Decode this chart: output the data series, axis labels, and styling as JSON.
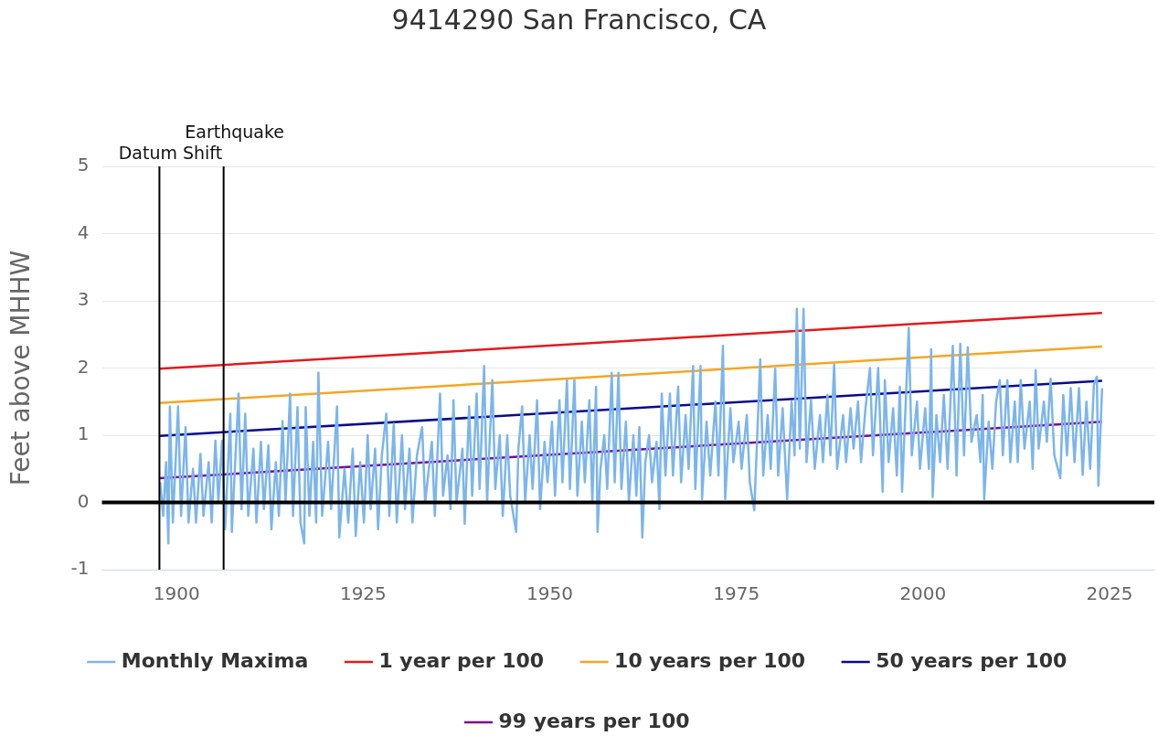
{
  "chart_data": {
    "type": "line",
    "title": "9414290 San Francisco, CA",
    "ylabel": "Feet above MHHW",
    "xlim": [
      1890,
      2031
    ],
    "xticks": [
      1900,
      1925,
      1950,
      1975,
      2000,
      2025
    ],
    "ylim": [
      -1,
      5
    ],
    "yticks": [
      -1,
      0,
      1,
      2,
      3,
      4,
      5
    ],
    "grid": "y",
    "legend": "bottom",
    "marker": "none",
    "line_style": "solid",
    "ref_lines": [
      {
        "axis": "x",
        "value": 1897.7,
        "label": "Datum Shift",
        "color": "#000000"
      },
      {
        "axis": "x",
        "value": 1906.3,
        "label": "Earthquake",
        "color": "#000000"
      },
      {
        "axis": "y",
        "value": 0,
        "color": "#000000"
      }
    ],
    "series": [
      {
        "name": "Monthly Maxima",
        "color": "#7cb5ec",
        "x": [
          1897.8,
          1898.2,
          1898.6,
          1898.9,
          1899.1,
          1899.5,
          1900.2,
          1900.6,
          1901.2,
          1901.6,
          1902.2,
          1902.6,
          1903.2,
          1903.6,
          1904.3,
          1904.7,
          1905.2,
          1905.6,
          1906.1,
          1906.5,
          1907.2,
          1907.4,
          1908.3,
          1908.7,
          1909.2,
          1909.6,
          1910.3,
          1910.7,
          1911.3,
          1911.7,
          1912.3,
          1912.7,
          1913.3,
          1913.7,
          1914.2,
          1914.6,
          1915.2,
          1915.6,
          1916.2,
          1916.6,
          1917.1,
          1917.3,
          1917.8,
          1918.3,
          1918.7,
          1919.0,
          1919.5,
          1920.3,
          1920.7,
          1921.5,
          1921.8,
          1922.5,
          1923.0,
          1923.6,
          1924.0,
          1924.6,
          1925.1,
          1925.6,
          1926.0,
          1926.6,
          1927.0,
          1927.5,
          1928.1,
          1928.5,
          1929.1,
          1929.5,
          1930.2,
          1930.6,
          1931.2,
          1931.6,
          1932.2,
          1932.9,
          1933.3,
          1934.2,
          1934.6,
          1935.3,
          1935.7,
          1936.3,
          1936.7,
          1937.1,
          1937.5,
          1938.3,
          1938.6,
          1939.2,
          1939.6,
          1940.2,
          1940.6,
          1941.2,
          1941.6,
          1942.3,
          1942.7,
          1943.3,
          1943.7,
          1944.3,
          1944.7,
          1945.5,
          1945.8,
          1946.3,
          1946.7,
          1947.3,
          1947.7,
          1948.3,
          1948.7,
          1949.3,
          1949.7,
          1950.3,
          1950.7,
          1951.3,
          1951.7,
          1952.3,
          1952.7,
          1953.3,
          1953.7,
          1954.3,
          1954.7,
          1955.3,
          1955.7,
          1956.2,
          1956.4,
          1956.8,
          1957.3,
          1957.7,
          1958.3,
          1958.7,
          1959.2,
          1959.6,
          1960.2,
          1960.6,
          1961.2,
          1961.6,
          1962.0,
          1962.4,
          1962.8,
          1963.3,
          1963.7,
          1964.3,
          1964.7,
          1965.0,
          1965.5,
          1966.1,
          1966.5,
          1967.2,
          1967.6,
          1968.2,
          1968.6,
          1969.2,
          1969.5,
          1970.2,
          1970.4,
          1971.0,
          1971.5,
          1972.2,
          1972.6,
          1973.2,
          1973.5,
          1974.2,
          1974.6,
          1975.3,
          1975.7,
          1976.4,
          1976.8,
          1977.4,
          1977.8,
          1978.2,
          1978.6,
          1979.2,
          1979.6,
          1980.2,
          1980.6,
          1981.2,
          1981.8,
          1982.4,
          1982.8,
          1983.1,
          1983.5,
          1984.0,
          1984.4,
          1985.0,
          1985.5,
          1986.2,
          1986.6,
          1987.2,
          1987.6,
          1988.1,
          1988.5,
          1989.3,
          1989.7,
          1990.3,
          1990.7,
          1991.3,
          1991.7,
          1992.3,
          1992.9,
          1993.3,
          1994.0,
          1994.6,
          1994.9,
          1995.4,
          1996.0,
          1996.5,
          1996.9,
          1997.2,
          1998.1,
          1998.5,
          1999.2,
          1999.6,
          2000.3,
          2000.8,
          2001.1,
          2001.3,
          2001.8,
          2002.3,
          2002.8,
          2003.3,
          2004.0,
          2004.5,
          2005.0,
          2005.5,
          2006.0,
          2006.5,
          2007.2,
          2007.7,
          2008.0,
          2008.2,
          2008.8,
          2009.3,
          2009.8,
          2010.3,
          2010.7,
          2011.3,
          2011.7,
          2012.3,
          2012.7,
          2013.1,
          2013.6,
          2014.3,
          2014.7,
          2015.1,
          2015.5,
          2016.2,
          2016.6,
          2017.1,
          2017.6,
          2018.4,
          2018.8,
          2019.3,
          2019.8,
          2020.3,
          2020.9,
          2021.4,
          2021.9,
          2022.4,
          2022.9,
          2023.3,
          2023.5,
          2024.0
        ],
        "values": [
          0.3,
          -0.2,
          0.6,
          -0.61,
          1.43,
          -0.3,
          1.43,
          -0.2,
          1.12,
          -0.3,
          0.5,
          -0.3,
          0.72,
          -0.2,
          0.6,
          -0.3,
          0.92,
          0.0,
          0.92,
          -0.4,
          1.32,
          -0.44,
          1.62,
          -0.1,
          1.32,
          -0.2,
          0.8,
          -0.3,
          0.9,
          -0.1,
          0.85,
          -0.4,
          0.6,
          -0.2,
          1.21,
          0.0,
          1.62,
          -0.2,
          1.42,
          -0.3,
          -0.61,
          1.42,
          -0.2,
          0.9,
          -0.3,
          1.93,
          -0.2,
          0.9,
          -0.1,
          1.43,
          -0.52,
          0.5,
          -0.3,
          0.8,
          -0.5,
          0.6,
          -0.3,
          1.0,
          -0.1,
          0.8,
          -0.4,
          0.7,
          1.32,
          -0.2,
          1.17,
          -0.3,
          1.0,
          -0.1,
          0.8,
          -0.3,
          0.7,
          1.12,
          0.0,
          0.9,
          -0.2,
          1.62,
          0.1,
          0.7,
          -0.1,
          1.52,
          0.0,
          0.8,
          -0.32,
          1.43,
          0.1,
          1.62,
          0.2,
          2.03,
          0.0,
          1.82,
          0.2,
          1.0,
          -0.2,
          1.0,
          0.1,
          -0.44,
          0.8,
          1.43,
          0.0,
          1.0,
          0.2,
          1.52,
          -0.1,
          0.9,
          0.3,
          1.2,
          0.1,
          1.52,
          0.3,
          1.82,
          0.2,
          1.82,
          0.1,
          1.2,
          0.3,
          1.52,
          0.0,
          1.72,
          -0.44,
          0.5,
          1.0,
          0.2,
          1.93,
          0.3,
          1.93,
          0.2,
          1.2,
          0.0,
          1.0,
          0.1,
          1.12,
          -0.52,
          0.6,
          1.0,
          0.3,
          0.9,
          -0.1,
          1.62,
          0.4,
          1.62,
          0.4,
          1.72,
          0.3,
          1.3,
          0.5,
          2.03,
          0.2,
          2.03,
          0.05,
          1.2,
          0.4,
          1.5,
          0.4,
          2.33,
          0.05,
          1.4,
          0.6,
          1.2,
          0.5,
          1.3,
          0.3,
          -0.12,
          1.0,
          2.13,
          0.4,
          1.3,
          0.5,
          1.99,
          0.4,
          1.4,
          0.05,
          1.5,
          0.7,
          2.88,
          0.8,
          2.88,
          0.6,
          1.52,
          0.5,
          1.3,
          0.6,
          1.6,
          0.7,
          2.05,
          0.5,
          1.3,
          0.6,
          1.4,
          0.8,
          1.5,
          0.6,
          1.4,
          2.0,
          0.7,
          2.0,
          0.16,
          1.82,
          0.6,
          1.4,
          0.4,
          1.72,
          0.16,
          2.6,
          0.7,
          1.5,
          0.5,
          1.4,
          0.5,
          2.28,
          0.08,
          1.3,
          0.6,
          1.6,
          0.5,
          2.33,
          0.4,
          2.36,
          0.7,
          2.31,
          0.9,
          1.3,
          0.6,
          1.6,
          0.05,
          1.2,
          0.5,
          1.5,
          1.82,
          0.7,
          1.82,
          0.6,
          1.5,
          0.6,
          1.82,
          0.8,
          1.5,
          0.5,
          1.97,
          0.8,
          1.5,
          0.9,
          1.84,
          0.7,
          0.36,
          1.6,
          0.7,
          1.7,
          0.6,
          1.7,
          0.41,
          1.5,
          0.5,
          1.75,
          1.87,
          0.25,
          1.7
        ]
      },
      {
        "name": "1 year per 100",
        "color": "#e41a1c",
        "x": [
          1897.7,
          2024
        ],
        "values": [
          1.99,
          2.82
        ]
      },
      {
        "name": "10 years per 100",
        "color": "#f5a623",
        "x": [
          1897.7,
          2024
        ],
        "values": [
          1.48,
          2.32
        ]
      },
      {
        "name": "50 years per 100",
        "color": "#0a0a8c",
        "x": [
          1897.7,
          2024
        ],
        "values": [
          0.99,
          1.81
        ]
      },
      {
        "name": "99 years per 100",
        "color": "#7b0a8e",
        "x": [
          1897.7,
          2024
        ],
        "values": [
          0.36,
          1.2
        ]
      }
    ]
  }
}
